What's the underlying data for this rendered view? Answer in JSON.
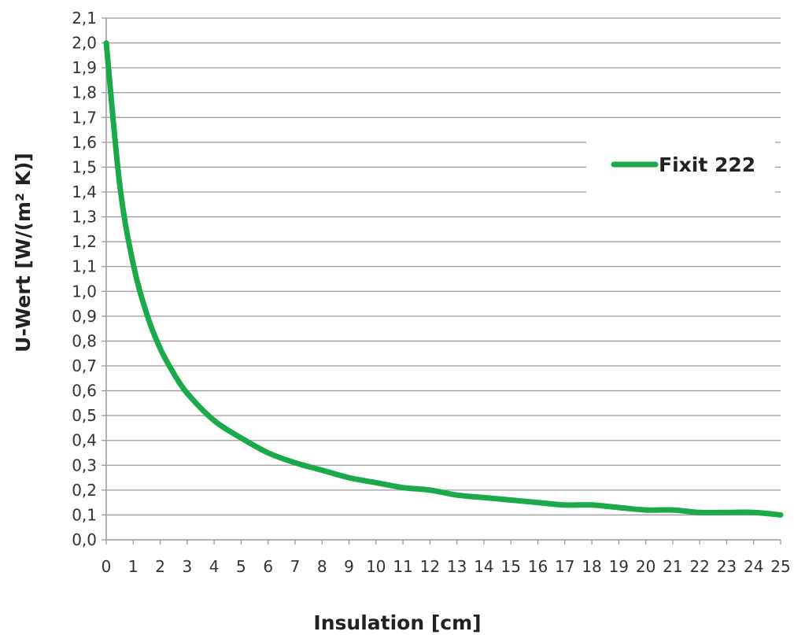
{
  "chart_data": {
    "type": "line",
    "title": "",
    "xlabel": "Insulation [cm]",
    "ylabel": "U-Wert [W/(m² K)]",
    "xlim": [
      0,
      25
    ],
    "ylim": [
      0,
      2.1
    ],
    "grid": true,
    "legend_position": "top-right",
    "x_ticks": [
      "0",
      "1",
      "2",
      "3",
      "4",
      "5",
      "6",
      "7",
      "8",
      "9",
      "10",
      "11",
      "12",
      "13",
      "14",
      "15",
      "16",
      "17",
      "18",
      "19",
      "20",
      "21",
      "22",
      "23",
      "24",
      "25"
    ],
    "y_ticks": [
      "0,0",
      "0,1",
      "0,2",
      "0,3",
      "0,4",
      "0,5",
      "0,6",
      "0,7",
      "0,8",
      "0,9",
      "1,0",
      "1,1",
      "1,2",
      "1,3",
      "1,4",
      "1,5",
      "1,6",
      "1,7",
      "1,8",
      "1,9",
      "2,0",
      "2,1"
    ],
    "series": [
      {
        "name": "Fixit 222",
        "color": "#1aaa4a",
        "x": [
          0,
          0.5,
          1,
          1.5,
          2,
          2.5,
          3,
          4,
          5,
          6,
          7,
          8,
          9,
          10,
          11,
          12,
          13,
          14,
          15,
          16,
          17,
          18,
          19,
          20,
          21,
          22,
          23,
          24,
          25
        ],
        "y": [
          2.0,
          1.43,
          1.11,
          0.91,
          0.77,
          0.67,
          0.59,
          0.48,
          0.41,
          0.35,
          0.31,
          0.28,
          0.25,
          0.23,
          0.21,
          0.2,
          0.18,
          0.17,
          0.16,
          0.15,
          0.14,
          0.14,
          0.13,
          0.12,
          0.12,
          0.11,
          0.11,
          0.11,
          0.1
        ]
      }
    ]
  }
}
